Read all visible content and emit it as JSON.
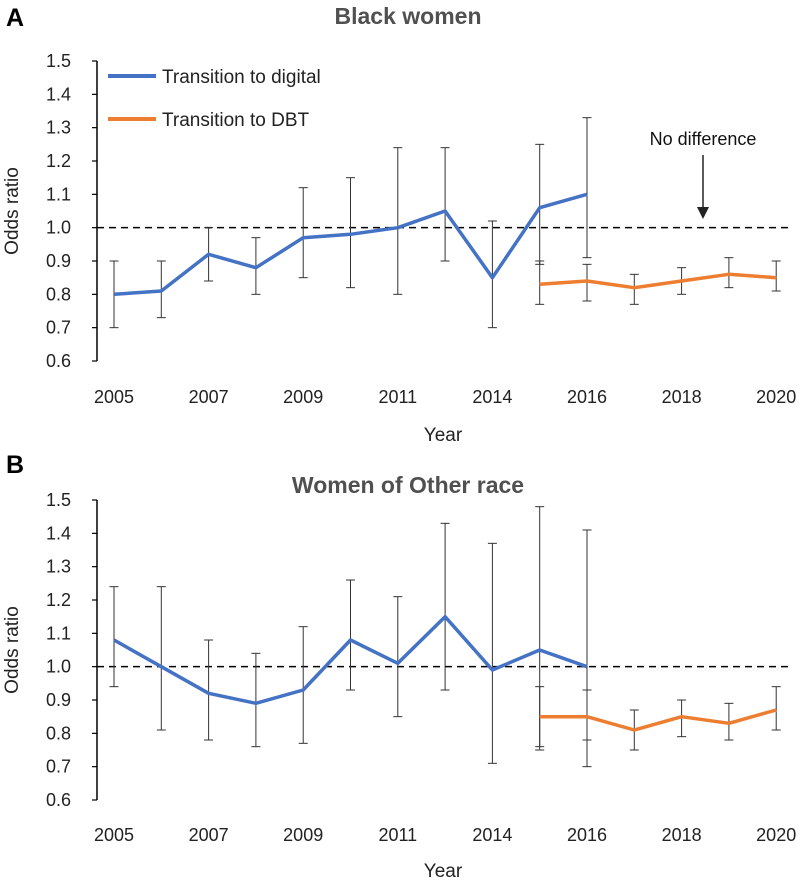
{
  "legend": {
    "digital": "Transition to digital",
    "dbt": "Transition to DBT"
  },
  "colors": {
    "digital": "#4472C4",
    "dbt": "#ED7D31",
    "errorbar": "#333333",
    "reference": "#000000"
  },
  "chart_data": [
    {
      "type": "line",
      "panel": "A",
      "title": "Black women",
      "xlabel": "Year",
      "ylabel": "Odds ratio",
      "ylim": [
        0.6,
        1.5
      ],
      "yticks": [
        "0.6",
        "0.7",
        "0.8",
        "0.9",
        "1.0",
        "1.1",
        "1.2",
        "1.3",
        "1.4",
        "1.5"
      ],
      "x": [
        2005,
        2006,
        2007,
        2008,
        2009,
        2010,
        2011,
        2012,
        2014,
        2015,
        2016,
        2017,
        2018,
        2019,
        2020
      ],
      "xtick_labels": [
        "2005",
        "2007",
        "2009",
        "2011",
        "2014",
        "2016",
        "2018",
        "2020"
      ],
      "xtick_label_years": [
        2005,
        2007,
        2009,
        2011,
        2014,
        2016,
        2018,
        2020
      ],
      "reference_line": 1.0,
      "annotation": "No difference",
      "annotation_x": 2019.5,
      "series": [
        {
          "key": "digital",
          "name": "Transition to digital",
          "x": [
            2005,
            2006,
            2007,
            2008,
            2009,
            2010,
            2011,
            2012,
            2014,
            2015,
            2016
          ],
          "values": [
            0.8,
            0.81,
            0.92,
            0.88,
            0.97,
            0.98,
            1.0,
            1.05,
            0.85,
            1.06,
            1.1
          ],
          "ci_low": [
            0.7,
            0.73,
            0.84,
            0.8,
            0.85,
            0.82,
            0.8,
            0.9,
            0.7,
            0.89,
            0.91
          ],
          "ci_high": [
            0.9,
            0.9,
            1.0,
            0.97,
            1.12,
            1.15,
            1.24,
            1.24,
            1.02,
            1.25,
            1.33
          ]
        },
        {
          "key": "dbt",
          "name": "Transition to DBT",
          "x": [
            2015,
            2016,
            2017,
            2018,
            2019,
            2020
          ],
          "values": [
            0.83,
            0.84,
            0.82,
            0.84,
            0.86,
            0.85
          ],
          "ci_low": [
            0.77,
            0.78,
            0.77,
            0.8,
            0.82,
            0.81
          ],
          "ci_high": [
            0.9,
            0.89,
            0.86,
            0.88,
            0.91,
            0.9
          ]
        }
      ]
    },
    {
      "type": "line",
      "panel": "B",
      "title": "Women of Other race",
      "xlabel": "Year",
      "ylabel": "Odds ratio",
      "ylim": [
        0.6,
        1.5
      ],
      "yticks": [
        "0.6",
        "0.7",
        "0.8",
        "0.9",
        "1.0",
        "1.1",
        "1.2",
        "1.3",
        "1.4",
        "1.5"
      ],
      "x": [
        2005,
        2006,
        2007,
        2008,
        2009,
        2010,
        2011,
        2012,
        2014,
        2015,
        2016,
        2017,
        2018,
        2019,
        2020
      ],
      "xtick_labels": [
        "2005",
        "2007",
        "2009",
        "2011",
        "2014",
        "2016",
        "2018",
        "2020"
      ],
      "xtick_label_years": [
        2005,
        2007,
        2009,
        2011,
        2014,
        2016,
        2018,
        2020
      ],
      "reference_line": 1.0,
      "series": [
        {
          "key": "digital",
          "name": "Transition to digital",
          "x": [
            2005,
            2006,
            2007,
            2008,
            2009,
            2010,
            2011,
            2012,
            2014,
            2015,
            2016
          ],
          "values": [
            1.08,
            1.0,
            0.92,
            0.89,
            0.93,
            1.08,
            1.01,
            1.15,
            0.99,
            1.05,
            1.0
          ],
          "ci_low": [
            0.94,
            0.81,
            0.78,
            0.76,
            0.77,
            0.93,
            0.85,
            0.93,
            0.71,
            0.75,
            0.7
          ],
          "ci_high": [
            1.24,
            1.24,
            1.08,
            1.04,
            1.12,
            1.26,
            1.21,
            1.43,
            1.37,
            1.48,
            1.41
          ]
        },
        {
          "key": "dbt",
          "name": "Transition to DBT",
          "x": [
            2015,
            2016,
            2017,
            2018,
            2019,
            2020
          ],
          "values": [
            0.85,
            0.85,
            0.81,
            0.85,
            0.83,
            0.87
          ],
          "ci_low": [
            0.76,
            0.78,
            0.75,
            0.79,
            0.78,
            0.81
          ],
          "ci_high": [
            0.94,
            0.93,
            0.87,
            0.9,
            0.89,
            0.94
          ]
        }
      ]
    }
  ]
}
